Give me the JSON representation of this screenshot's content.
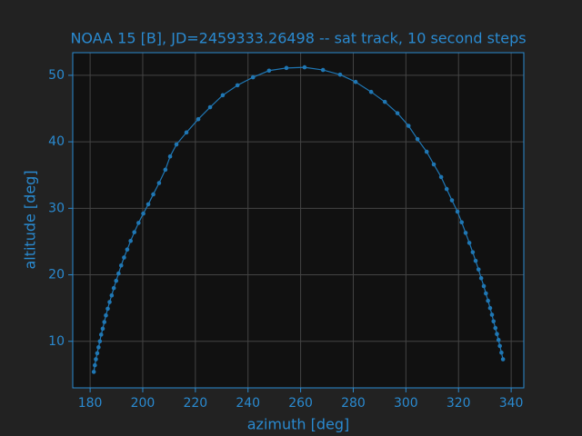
{
  "chart_data": {
    "type": "line",
    "title": "NOAA 15 [B], JD=2459333.26498 -- sat track, 10 second steps",
    "x_label": "azimuth [deg]",
    "y_label": "altitude [deg]",
    "series": [
      {
        "color": "#1f77b4",
        "x": [
          181.4,
          181.8,
          182.2,
          182.7,
          183.2,
          183.7,
          184.2,
          184.8,
          185.4,
          186.0,
          186.7,
          187.4,
          188.2,
          189.0,
          189.9,
          190.8,
          191.8,
          192.9,
          194.1,
          195.4,
          196.8,
          198.4,
          200.2,
          202.1,
          204.0,
          206.2,
          208.6,
          210.4,
          212.8,
          216.6,
          221.1,
          225.6,
          230.4,
          236.0,
          241.9,
          248.0,
          254.6,
          261.5,
          268.5,
          275.0,
          280.9,
          286.8,
          292.0,
          296.8,
          301.0,
          304.4,
          307.9,
          310.6,
          313.4,
          315.5,
          317.5,
          319.6,
          321.2,
          322.7,
          324.1,
          325.4,
          326.5,
          327.6,
          328.6,
          329.6,
          330.4,
          331.2,
          332.0,
          332.7,
          333.3,
          334.0,
          334.6,
          335.2,
          335.7,
          336.3,
          336.9
        ],
        "values": [
          5.4,
          6.4,
          7.3,
          8.2,
          9.1,
          10.0,
          11.0,
          11.9,
          12.9,
          13.9,
          14.9,
          15.9,
          16.9,
          18.0,
          19.1,
          20.2,
          21.4,
          22.6,
          23.8,
          25.1,
          26.4,
          27.8,
          29.2,
          30.6,
          32.1,
          33.8,
          35.8,
          37.8,
          39.6,
          41.4,
          43.4,
          45.2,
          47.0,
          48.5,
          49.7,
          50.7,
          51.1,
          51.2,
          50.8,
          50.1,
          49.0,
          47.5,
          46.0,
          44.3,
          42.4,
          40.4,
          38.5,
          36.6,
          34.7,
          32.9,
          31.2,
          29.5,
          27.9,
          26.3,
          24.8,
          23.4,
          22.1,
          20.8,
          19.5,
          18.3,
          17.2,
          16.1,
          15.0,
          14.0,
          13.0,
          12.0,
          11.1,
          10.2,
          9.3,
          8.3,
          7.3
        ]
      }
    ],
    "xlim": [
      173.4,
      344.8
    ],
    "ylim": [
      3.0,
      53.4
    ],
    "xticks": [
      180,
      200,
      220,
      240,
      260,
      280,
      300,
      320,
      340
    ],
    "yticks": [
      10,
      20,
      30,
      40,
      50
    ],
    "grid": true
  }
}
